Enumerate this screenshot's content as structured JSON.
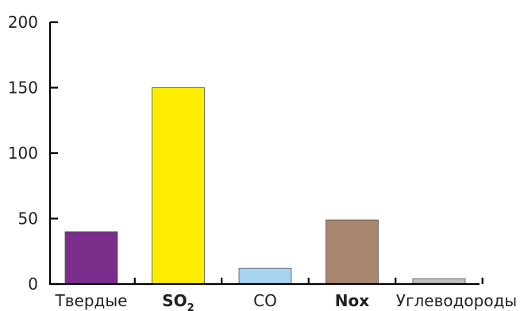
{
  "chart_data": {
    "type": "bar",
    "categories": [
      {
        "label": "Твердые",
        "bold": false
      },
      {
        "label": "SO",
        "sub": "2",
        "bold": true
      },
      {
        "label": "CO",
        "bold": false
      },
      {
        "label": "Nox",
        "bold": true
      },
      {
        "label": "Углеводороды",
        "bold": false
      }
    ],
    "values": [
      40,
      150,
      12,
      49,
      4
    ],
    "colors": [
      "#7b2d8b",
      "#ffed00",
      "#a9d3f2",
      "#a88670",
      "#bfc0c2"
    ],
    "ylim": [
      0,
      200
    ],
    "yticks": [
      "0",
      "50",
      "100",
      "150",
      "200"
    ],
    "grid": false,
    "title": "",
    "xlabel": "",
    "ylabel": ""
  }
}
